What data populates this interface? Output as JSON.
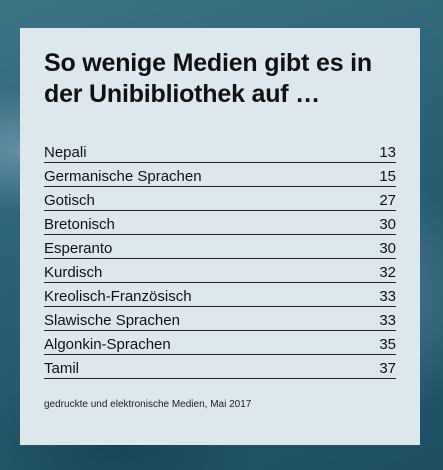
{
  "chart_data": {
    "type": "table",
    "title": "So wenige Medien gibt es in der Unibibliothek auf …",
    "categories": [
      "Nepali",
      "Germanische Sprachen",
      "Gotisch",
      "Bretonisch",
      "Esperanto",
      "Kurdisch",
      "Kreolisch-Französisch",
      "Slawische Sprachen",
      "Algonkin-Sprachen",
      "Tamil"
    ],
    "values": [
      13,
      15,
      27,
      30,
      30,
      32,
      33,
      33,
      35,
      37
    ],
    "note": "gedruckte und elektronische Medien, Mai 2017"
  }
}
